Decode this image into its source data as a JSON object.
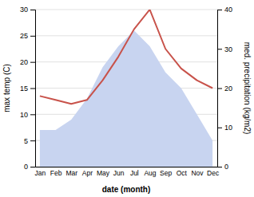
{
  "chart_data": {
    "type": "area",
    "xlabel": "date (month)",
    "ylabel": "max temp (C)",
    "y2label": "med. precipitation (kg/m2)",
    "categories": [
      "Jan",
      "Feb",
      "Mar",
      "Apr",
      "May",
      "Jun",
      "Jul",
      "Aug",
      "Sep",
      "Oct",
      "Nov",
      "Dec"
    ],
    "series": [
      {
        "type": "area",
        "color": "#c8d4f0",
        "values": [
          7,
          7,
          9,
          13,
          19,
          23,
          26,
          23,
          18,
          15,
          10,
          5
        ]
      },
      {
        "type": "line",
        "color": "#c8524a",
        "axis": "y2",
        "values": [
          18,
          17,
          16,
          17,
          22,
          28,
          35,
          40,
          30,
          25,
          22,
          20
        ]
      }
    ],
    "ylim": [
      0,
      30
    ],
    "yticks": [
      0,
      5,
      10,
      15,
      20,
      25,
      30
    ],
    "y2lim": [
      0,
      40
    ],
    "y2ticks": [
      0,
      10,
      20,
      30,
      40
    ],
    "grid": true
  }
}
